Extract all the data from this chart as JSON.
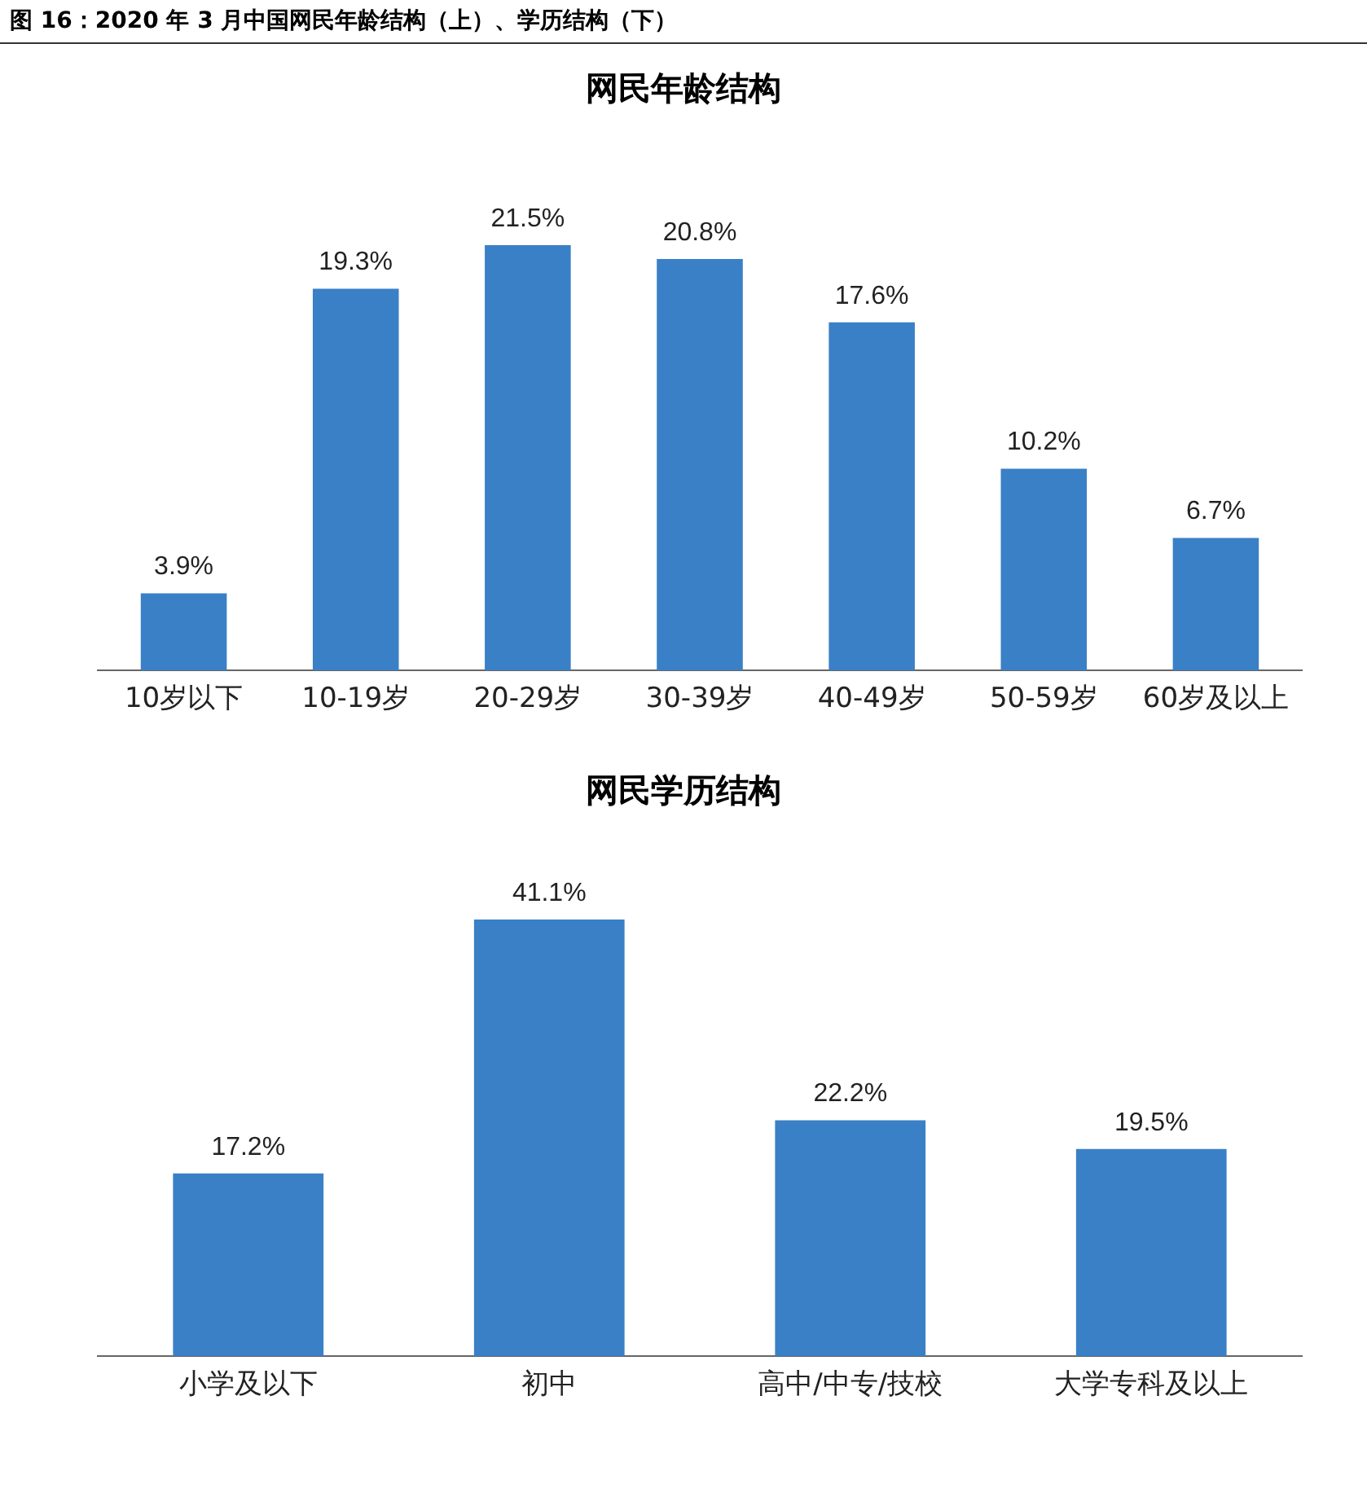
{
  "chart_data": [
    {
      "type": "bar",
      "title": "网民年龄结构",
      "annotations": [
        "图 16：2020 年 3 月中国网民年龄结构（上）、学历结构（下）"
      ],
      "categories": [
        "10岁以下",
        "10-19岁",
        "20-29岁",
        "30-39岁",
        "40-49岁",
        "50-59岁",
        "60岁及以上"
      ],
      "values": [
        3.9,
        19.3,
        21.5,
        20.8,
        17.6,
        10.2,
        6.7
      ],
      "value_labels": [
        "3.9%",
        "19.3%",
        "21.5%",
        "20.8%",
        "17.6%",
        "10.2%",
        "6.7%"
      ],
      "color": "#3a80c6",
      "grid": false,
      "legend": false,
      "tick_labels": "x"
    },
    {
      "type": "bar",
      "title": "网民学历结构",
      "categories": [
        "小学及以下",
        "初中",
        "高中/中专/技校",
        "大学专科及以上"
      ],
      "values": [
        17.2,
        41.1,
        22.2,
        19.5
      ],
      "value_labels": [
        "17.2%",
        "41.1%",
        "22.2%",
        "19.5%"
      ],
      "color": "#3a80c6",
      "grid": false,
      "legend": false,
      "tick_labels": "x"
    }
  ]
}
